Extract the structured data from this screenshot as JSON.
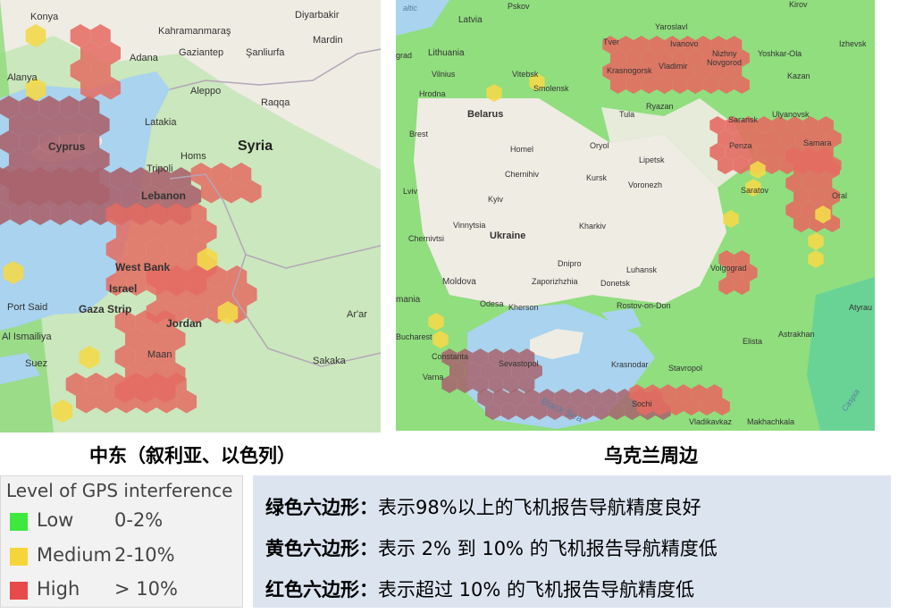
{
  "panels": {
    "middle_east": {
      "caption": "中东（叙利亚、以色列）",
      "labels": {
        "konya": "Konya",
        "kahramanmaras": "Kahramanmaraş",
        "diyarbakir": "Diyarbakir",
        "gaziantep": "Gaziantep",
        "sanliurfa": "Şanliurfa",
        "mardin": "Mardin",
        "adana": "Adana",
        "alanya": "Alanya",
        "aleppo": "Aleppo",
        "raqqa": "Raqqa",
        "latakia": "Latakia",
        "cyprus": "Cyprus",
        "syria": "Syria",
        "homs": "Homs",
        "tripoli": "Tripoli",
        "lebanon": "Lebanon",
        "west_bank": "West Bank",
        "israel": "Israel",
        "port_said": "Port Said",
        "gaza_strip": "Gaza Strip",
        "jordan": "Jordan",
        "al_ismailiya": "Al Ismailiya",
        "suez": "Suez",
        "maan": "Maan",
        "sakaka": "Sakaka",
        "ar_ar": "Ar'ar"
      }
    },
    "ukraine": {
      "caption": "乌克兰周边",
      "labels": {
        "latvia": "Latvia",
        "pskov": "Pskov",
        "yaroslavl": "Yaroslavl",
        "kirov": "Kirov",
        "ivanovo": "Ivanovo",
        "tver": "Tver",
        "lithuania": "Lithuania",
        "vitebsk": "Vitebsk",
        "krasnogorsk": "Krasnogorsk",
        "vladimir": "Vladimir",
        "nizhny": "Nizhny",
        "novgorod": "Novgorod",
        "yoshkar_ola": "Yoshkar-Ola",
        "kazan": "Kazan",
        "izhevsk": "Izhevsk",
        "grad": "grad",
        "vilnius": "Vilnius",
        "smolensk": "Smolensk",
        "hrodna": "Hrodna",
        "belarus": "Belarus",
        "ryazan": "Ryazan",
        "tula": "Tula",
        "ulyanovsk": "Ulyanovsk",
        "saransk": "Saransk",
        "brest": "Brest",
        "oryol": "Oryol",
        "penza": "Penza",
        "samara": "Samara",
        "homel": "Homel",
        "lipetsk": "Lipetsk",
        "chernihiv": "Chernihiv",
        "kursk": "Kursk",
        "voronezh": "Voronezh",
        "saratov": "Saratov",
        "oral": "Oral",
        "lviv": "Lviv",
        "kyiv": "Kyiv",
        "vinnytsia": "Vinnytsia",
        "kharkiv": "Kharkiv",
        "ukraine": "Ukraine",
        "chernivtsi": "Chernivtsi",
        "dnipro": "Dnipro",
        "luhansk": "Luhansk",
        "volgograd": "Volgograd",
        "zaporizhzhia": "Zaporizhzhia",
        "moldova": "Moldova",
        "donetsk": "Donetsk",
        "rostov": "Rostov-on-Don",
        "odesa": "Odesa",
        "kherson": "Kherson",
        "atyrau": "Atyrau",
        "mania": "mania",
        "bucharest": "Bucharest",
        "astrakhan": "Astrakhan",
        "elista": "Elista",
        "constanta": "Constanta",
        "sevastopol": "Sevastopol",
        "krasnodar": "Krasnodar",
        "varna": "Varna",
        "stavropol": "Stavropol",
        "sochi": "Sochi",
        "black_sea": "Black Sea",
        "vladikavkaz": "Vladikavkaz",
        "makhachkala": "Makhachkala",
        "baltic": "altic",
        "caspian": "Caspia"
      }
    }
  },
  "legend": {
    "title": "Level of GPS interference",
    "items": [
      {
        "label": "Low",
        "range": "0-2%",
        "color": "#3ee83e"
      },
      {
        "label": "Medium",
        "range": "2-10%",
        "color": "#f5d53a"
      },
      {
        "label": "High",
        "range": "> 10%",
        "color": "#e8494b"
      }
    ]
  },
  "notes": [
    {
      "term": "绿色六边形：",
      "desc": "表示98%以上的飞机报告导航精度良好"
    },
    {
      "term": "黄色六边形：",
      "desc": "表示 2% 到 10% 的飞机报告导航精度低"
    },
    {
      "term": "红色六边形：",
      "desc": "表示超过 10% 的飞机报告导航精度低"
    }
  ],
  "colors": {
    "land": "#efece4",
    "sea": "#a9d3ee",
    "low": "#6bdc5a",
    "medium": "#f3d94a",
    "high": "#e46b62",
    "high_overlap": "#a8636d",
    "border": "#b3a6b8"
  }
}
